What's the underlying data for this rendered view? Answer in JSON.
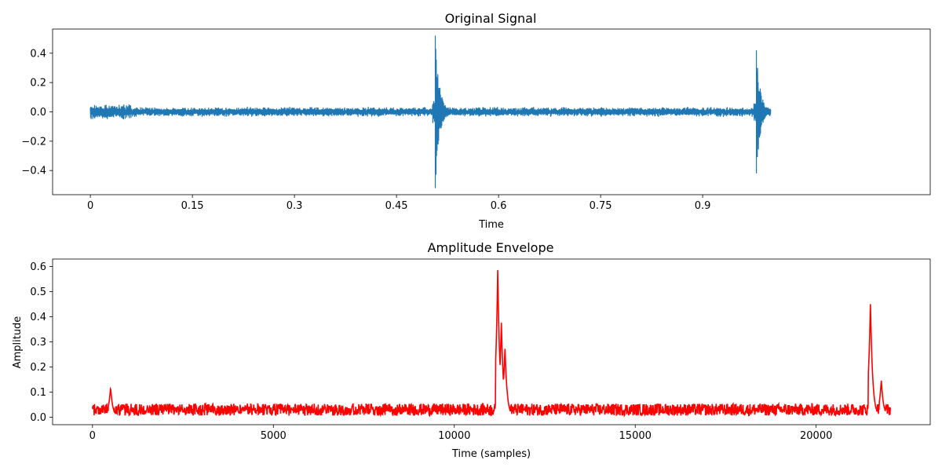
{
  "chart_data": [
    {
      "type": "line",
      "title": "Original Signal",
      "xlabel": "Time",
      "ylabel": "",
      "xlim": [
        -0.0555,
        1.2345
      ],
      "ylim": [
        -0.565,
        0.565
      ],
      "x_ticks": [
        0,
        0.15,
        0.3,
        0.45,
        0.6,
        0.75,
        0.9
      ],
      "x_tick_labels": [
        "0",
        "0.15",
        "0.3",
        "0.45",
        "0.6",
        "0.75",
        "0.9"
      ],
      "y_ticks": [
        -0.4,
        -0.2,
        0.0,
        0.2,
        0.4
      ],
      "y_tick_labels": [
        "−0.4",
        "−0.2",
        "0.0",
        "0.2",
        "0.4"
      ],
      "color": "#1f77b4",
      "x_range": [
        0,
        1.0
      ],
      "noise_amplitude": 0.035,
      "events": [
        {
          "x": 0.507,
          "peak": 0.52,
          "trough": -0.52
        },
        {
          "x": 0.979,
          "peak": 0.42,
          "trough": -0.42
        }
      ]
    },
    {
      "type": "line",
      "title": "Amplitude Envelope",
      "xlabel": "Time (samples)",
      "ylabel": "Amplitude",
      "xlim": [
        -1102.5,
        23152.5
      ],
      "ylim": [
        -0.03,
        0.63
      ],
      "x_ticks": [
        0,
        5000,
        10000,
        15000,
        20000
      ],
      "x_tick_labels": [
        "0",
        "5000",
        "10000",
        "15000",
        "20000"
      ],
      "y_ticks": [
        0.0,
        0.1,
        0.2,
        0.3,
        0.4,
        0.5,
        0.6
      ],
      "y_tick_labels": [
        "0.0",
        "0.1",
        "0.2",
        "0.3",
        "0.4",
        "0.5",
        "0.6"
      ],
      "color": "#ff0000",
      "x_range": [
        0,
        22050
      ],
      "baseline": 0.03,
      "points": [
        {
          "x": 500,
          "y": 0.12
        },
        {
          "x": 11200,
          "y": 0.59
        },
        {
          "x": 11300,
          "y": 0.38
        },
        {
          "x": 11400,
          "y": 0.28
        },
        {
          "x": 21500,
          "y": 0.46
        },
        {
          "x": 21800,
          "y": 0.15
        }
      ]
    }
  ]
}
